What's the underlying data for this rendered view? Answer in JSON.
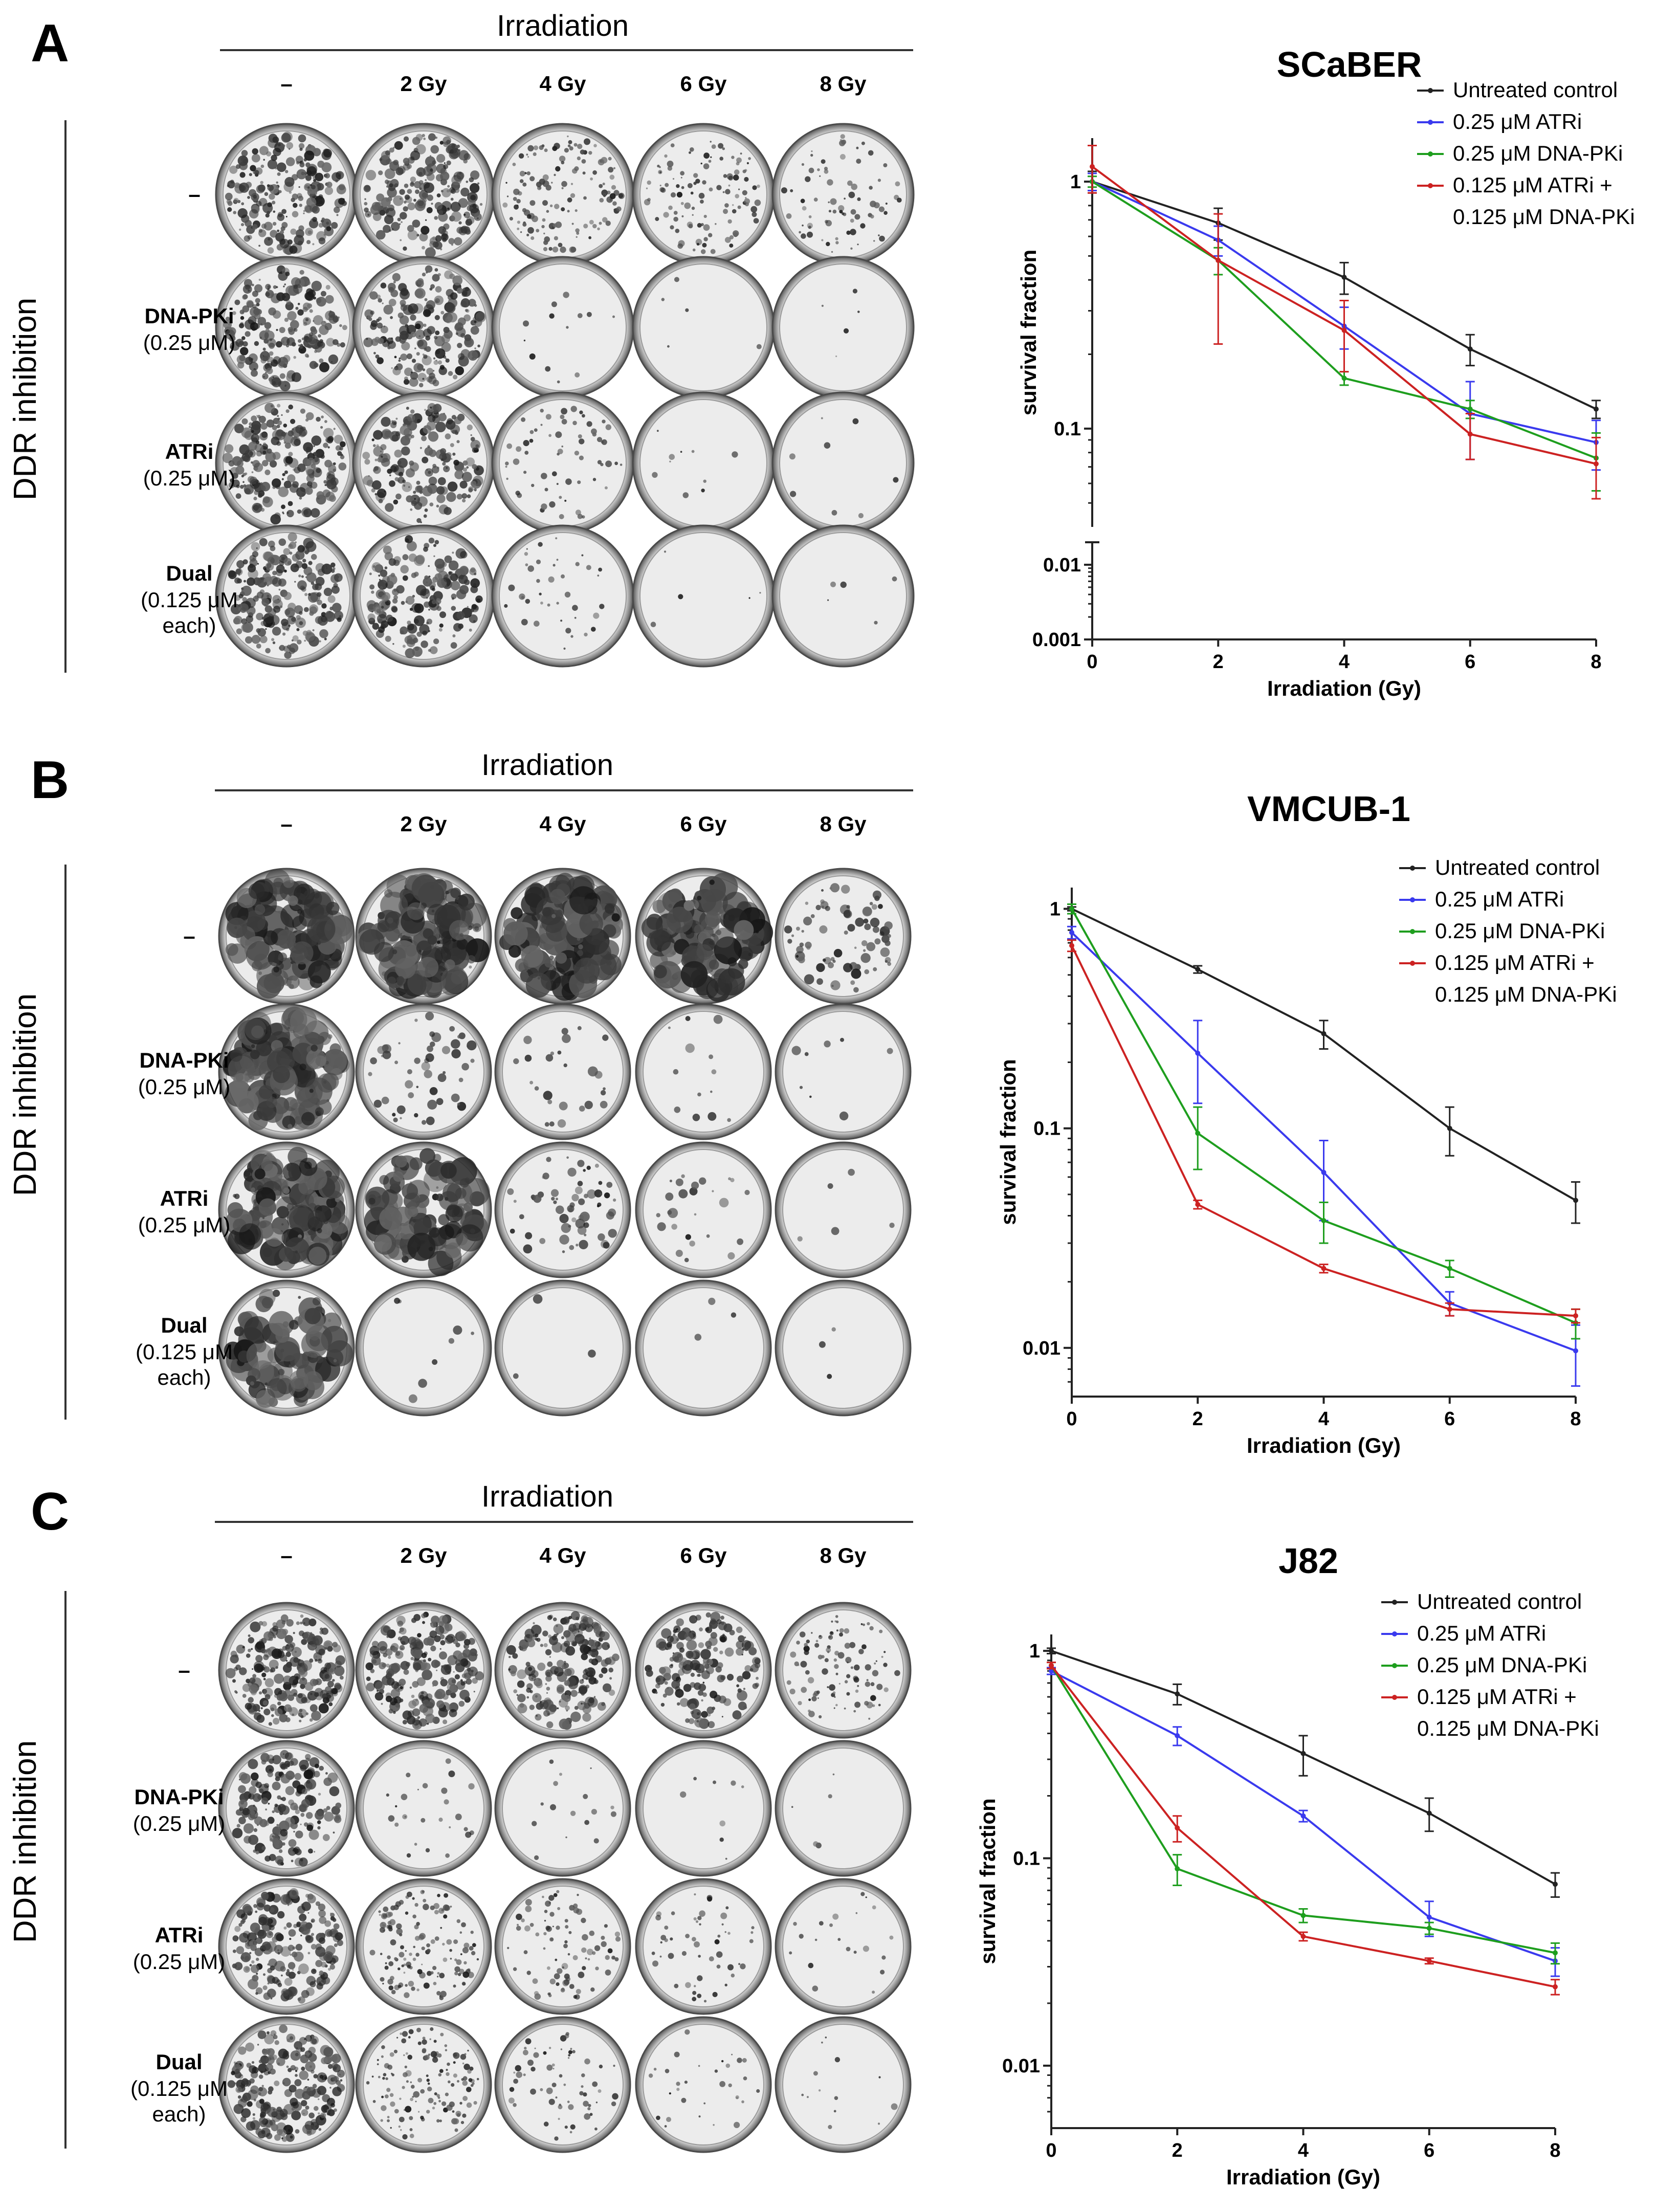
{
  "colors": {
    "Untreated control": "#222222",
    "0.25 μM ATRi": "#3a3aee",
    "0.25 μM DNA-PKi": "#1e9e1e",
    "0.125 μM ATRi + 0.125 μM DNA-PKi": "#cc2222"
  },
  "icons": {
    "dish": "petri-dish-icon"
  },
  "panels": [
    {
      "letter": "A",
      "irradiation_header": "Irradiation",
      "columns": [
        "–",
        "2 Gy",
        "4 Gy",
        "6 Gy",
        "8 Gy"
      ],
      "side_label": "DDR inhibition",
      "rows": [
        {
          "name": "–",
          "sub": ""
        },
        {
          "name": "DNA-PKi",
          "sub": "(0.25 μM)"
        },
        {
          "name": "ATRi",
          "sub": "(0.25 μM)"
        },
        {
          "name": "Dual",
          "sub": "(0.125 μM",
          "sub2": "each)"
        }
      ],
      "density": [
        [
          0.92,
          0.85,
          0.55,
          0.45,
          0.3
        ],
        [
          0.88,
          0.8,
          0.05,
          0.02,
          0.02
        ],
        [
          0.9,
          0.78,
          0.25,
          0.04,
          0.03
        ],
        [
          0.88,
          0.75,
          0.15,
          0.02,
          0.02
        ]
      ]
    },
    {
      "letter": "B",
      "irradiation_header": "Irradiation",
      "columns": [
        "–",
        "2 Gy",
        "4 Gy",
        "6 Gy",
        "8 Gy"
      ],
      "side_label": "DDR inhibition",
      "rows": [
        {
          "name": "–",
          "sub": ""
        },
        {
          "name": "DNA-PKi",
          "sub": "(0.25 μM)"
        },
        {
          "name": "ATRi",
          "sub": "(0.25 μM)"
        },
        {
          "name": "Dual",
          "sub": "(0.125 μM",
          "sub2": "each)"
        }
      ],
      "density": [
        [
          0.55,
          0.6,
          0.55,
          0.5,
          0.3
        ],
        [
          0.6,
          0.2,
          0.1,
          0.05,
          0.03
        ],
        [
          0.6,
          0.4,
          0.25,
          0.1,
          0.02
        ],
        [
          0.35,
          0.03,
          0.01,
          0.01,
          0.01
        ]
      ]
    },
    {
      "letter": "C",
      "irradiation_header": "Irradiation",
      "columns": [
        "–",
        "2 Gy",
        "4 Gy",
        "6 Gy",
        "8 Gy"
      ],
      "side_label": "DDR inhibition",
      "rows": [
        {
          "name": "–",
          "sub": ""
        },
        {
          "name": "DNA-PKi",
          "sub": "(0.25 μM)"
        },
        {
          "name": "ATRi",
          "sub": "(0.25 μM)"
        },
        {
          "name": "Dual",
          "sub": "(0.125 μM",
          "sub2": "each)"
        }
      ],
      "density": [
        [
          0.95,
          0.9,
          0.85,
          0.7,
          0.4
        ],
        [
          0.75,
          0.1,
          0.06,
          0.03,
          0.02
        ],
        [
          0.9,
          0.55,
          0.35,
          0.2,
          0.08
        ],
        [
          0.95,
          0.55,
          0.25,
          0.12,
          0.05
        ]
      ]
    }
  ],
  "chart_data": [
    {
      "type": "line",
      "title": "SCaBER",
      "xlabel": "Irradiation (Gy)",
      "ylabel": "survival fraction",
      "yscale": "log",
      "axis_break": true,
      "x": [
        0,
        2,
        4,
        6,
        8
      ],
      "xticks": [
        "0",
        "2",
        "4",
        "6",
        "8"
      ],
      "yticks_upper": [
        {
          "v": 1,
          "t": "1"
        },
        {
          "v": 0.1,
          "t": "0.1"
        }
      ],
      "yticks_lower": [
        {
          "v": 0.01,
          "t": "0.01"
        },
        {
          "v": 0.001,
          "t": "0.001"
        }
      ],
      "ylim_upper": [
        0.04,
        1.5
      ],
      "ylim_lower": [
        0.001,
        0.02
      ],
      "legend": [
        "Untreated control",
        "0.25 μM ATRi",
        "0.25 μM DNA-PKi",
        "0.125 μM ATRi +",
        "0.125 μM DNA-PKi"
      ],
      "series": [
        {
          "name": "Untreated control",
          "values": [
            1.0,
            0.68,
            0.41,
            0.21,
            0.12
          ],
          "err": [
            0.1,
            0.1,
            0.06,
            0.03,
            0.01
          ]
        },
        {
          "name": "0.25 μM ATRi",
          "values": [
            1.0,
            0.58,
            0.26,
            0.115,
            0.088
          ],
          "err": [
            0.08,
            0.08,
            0.05,
            0.04,
            0.02
          ]
        },
        {
          "name": "0.25 μM DNA-PKi",
          "values": [
            1.0,
            0.48,
            0.16,
            0.12,
            0.076
          ],
          "err": [
            0.05,
            0.06,
            0.01,
            0.01,
            0.02
          ]
        },
        {
          "name": "0.125 μM ATRi + 0.125 μM DNA-PKi",
          "values": [
            1.15,
            0.48,
            0.25,
            0.095,
            0.072
          ],
          "err": [
            0.25,
            0.26,
            0.08,
            0.02,
            0.02
          ]
        }
      ]
    },
    {
      "type": "line",
      "title": "VMCUB-1",
      "xlabel": "Irradiation (Gy)",
      "ylabel": "survival fraction",
      "yscale": "log",
      "axis_break": false,
      "x": [
        0,
        2,
        4,
        6,
        8
      ],
      "xticks": [
        "0",
        "2",
        "4",
        "6",
        "8"
      ],
      "yticks_upper": [
        {
          "v": 1,
          "t": "1"
        },
        {
          "v": 0.1,
          "t": "0.1"
        },
        {
          "v": 0.01,
          "t": "0.01"
        }
      ],
      "ylim_upper": [
        0.006,
        1.25
      ],
      "legend": [
        "Untreated control",
        "0.25 μM ATRi",
        "0.25 μM DNA-PKi",
        "0.125 μM ATRi +",
        "0.125 μM DNA-PKi"
      ],
      "series": [
        {
          "name": "Untreated control",
          "values": [
            1.0,
            0.53,
            0.27,
            0.1,
            0.047
          ],
          "err": [
            0.02,
            0.02,
            0.04,
            0.025,
            0.01
          ]
        },
        {
          "name": "0.25 μM ATRi",
          "values": [
            0.78,
            0.22,
            0.063,
            0.016,
            0.0097
          ],
          "err": [
            0.05,
            0.09,
            0.025,
            0.002,
            0.003
          ]
        },
        {
          "name": "0.25 μM DNA-PKi",
          "values": [
            1.0,
            0.095,
            0.038,
            0.023,
            0.013
          ],
          "err": [
            0.05,
            0.03,
            0.008,
            0.002,
            0.002
          ]
        },
        {
          "name": "0.125 μM ATRi + 0.125 μM DNA-PKi",
          "values": [
            0.68,
            0.045,
            0.023,
            0.015,
            0.014
          ],
          "err": [
            0.04,
            0.002,
            0.001,
            0.001,
            0.001
          ]
        }
      ]
    },
    {
      "type": "line",
      "title": "J82",
      "xlabel": "Irradiation (Gy)",
      "ylabel": "survival fraction",
      "yscale": "log",
      "axis_break": false,
      "x": [
        0,
        2,
        4,
        6,
        8
      ],
      "xticks": [
        "0",
        "2",
        "4",
        "6",
        "8"
      ],
      "yticks_upper": [
        {
          "v": 1,
          "t": "1"
        },
        {
          "v": 0.1,
          "t": "0.1"
        },
        {
          "v": 0.01,
          "t": "0.01"
        }
      ],
      "ylim_upper": [
        0.005,
        1.2
      ],
      "legend": [
        "Untreated control",
        "0.25 μM ATRi",
        "0.25 μM DNA-PKi",
        "0.125 μM ATRi +",
        "0.125 μM DNA-PKi"
      ],
      "series": [
        {
          "name": "Untreated control",
          "values": [
            1.0,
            0.62,
            0.32,
            0.165,
            0.075
          ],
          "err": [
            0.03,
            0.07,
            0.07,
            0.03,
            0.01
          ]
        },
        {
          "name": "0.25 μM ATRi",
          "values": [
            0.8,
            0.39,
            0.16,
            0.052,
            0.032
          ],
          "err": [
            0.03,
            0.04,
            0.01,
            0.01,
            0.005
          ]
        },
        {
          "name": "0.25 μM DNA-PKi",
          "values": [
            0.85,
            0.089,
            0.053,
            0.046,
            0.035
          ],
          "err": [
            0.03,
            0.015,
            0.004,
            0.003,
            0.004
          ]
        },
        {
          "name": "0.125 μM ATRi + 0.125 μM DNA-PKi",
          "values": [
            0.85,
            0.14,
            0.042,
            0.032,
            0.024
          ],
          "err": [
            0.03,
            0.02,
            0.002,
            0.001,
            0.002
          ]
        }
      ]
    }
  ]
}
